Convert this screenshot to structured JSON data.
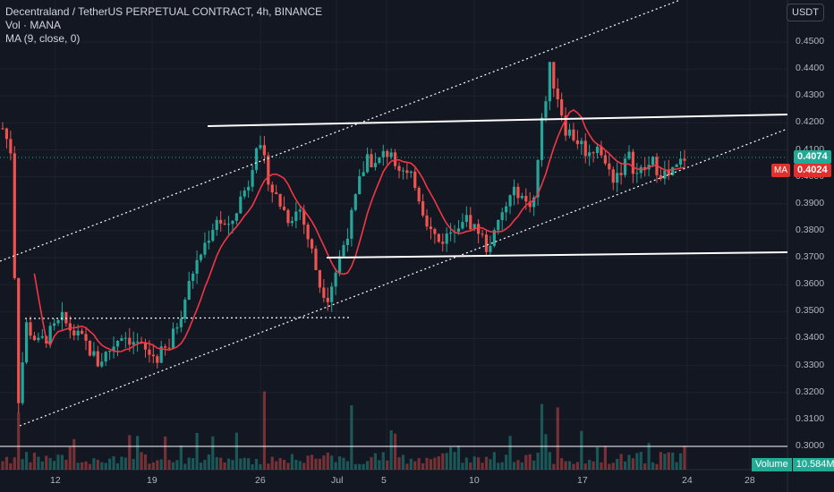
{
  "legend": {
    "title": "Decentraland / TetherUS PERPETUAL CONTRACT, 4h, BINANCE",
    "vol": "Vol · MANA",
    "ma": "MA (9, close, 0)"
  },
  "currency_button": "USDT",
  "tags": {
    "last_price": "0.4074",
    "ma_label": "MA",
    "ma_value": "0.4024",
    "volume_label": "Volume",
    "volume_value": "10.584M"
  },
  "colors": {
    "background": "#131722",
    "up": "#26a69a",
    "down": "#ef5350",
    "ma": "#f23645",
    "lines": "#ffffff"
  },
  "chart_data": {
    "type": "candlestick",
    "symbol": "MANAUSDT",
    "interval": "4h",
    "yaxis_ticks": [
      "0.4500",
      "0.4400",
      "0.4300",
      "0.4200",
      "0.4100",
      "0.4000",
      "0.3900",
      "0.3800",
      "0.3700",
      "0.3600",
      "0.3500",
      "0.3400",
      "0.3300",
      "0.3200",
      "0.3100",
      "0.3000"
    ],
    "ylim": [
      0.2955,
      0.4585
    ],
    "xaxis_ticks": [
      "12",
      "19",
      "26",
      "Jul",
      "5",
      "10",
      "17",
      "24",
      "28"
    ],
    "series_close_path": [
      [
        0,
        0.418
      ],
      [
        2,
        0.41
      ],
      [
        4,
        0.318
      ],
      [
        6,
        0.345
      ],
      [
        9,
        0.338
      ],
      [
        12,
        0.342
      ],
      [
        15,
        0.347
      ],
      [
        18,
        0.342
      ],
      [
        21,
        0.338
      ],
      [
        24,
        0.331
      ],
      [
        27,
        0.336
      ],
      [
        30,
        0.342
      ],
      [
        33,
        0.339
      ],
      [
        36,
        0.335
      ],
      [
        39,
        0.333
      ],
      [
        42,
        0.337
      ],
      [
        45,
        0.35
      ],
      [
        48,
        0.365
      ],
      [
        51,
        0.375
      ],
      [
        54,
        0.385
      ],
      [
        57,
        0.38
      ],
      [
        60,
        0.392
      ],
      [
        62,
        0.398
      ],
      [
        64,
        0.413
      ],
      [
        66,
        0.405
      ],
      [
        68,
        0.395
      ],
      [
        70,
        0.39
      ],
      [
        72,
        0.385
      ],
      [
        75,
        0.388
      ],
      [
        78,
        0.372
      ],
      [
        80,
        0.36
      ],
      [
        82,
        0.356
      ],
      [
        84,
        0.365
      ],
      [
        86,
        0.375
      ],
      [
        88,
        0.385
      ],
      [
        90,
        0.398
      ],
      [
        92,
        0.408
      ],
      [
        94,
        0.404
      ],
      [
        96,
        0.408
      ],
      [
        98,
        0.41
      ],
      [
        100,
        0.404
      ],
      [
        102,
        0.4
      ],
      [
        104,
        0.398
      ],
      [
        106,
        0.388
      ],
      [
        108,
        0.38
      ],
      [
        110,
        0.376
      ],
      [
        112,
        0.378
      ],
      [
        114,
        0.382
      ],
      [
        116,
        0.385
      ],
      [
        118,
        0.383
      ],
      [
        120,
        0.38
      ],
      [
        122,
        0.374
      ],
      [
        124,
        0.378
      ],
      [
        126,
        0.386
      ],
      [
        128,
        0.392
      ],
      [
        130,
        0.395
      ],
      [
        132,
        0.39
      ],
      [
        134,
        0.392
      ],
      [
        136,
        0.42
      ],
      [
        138,
        0.44
      ],
      [
        140,
        0.43
      ],
      [
        142,
        0.418
      ],
      [
        144,
        0.415
      ],
      [
        146,
        0.412
      ],
      [
        148,
        0.408
      ],
      [
        150,
        0.413
      ],
      [
        152,
        0.404
      ],
      [
        154,
        0.4
      ],
      [
        156,
        0.403
      ],
      [
        158,
        0.407
      ],
      [
        160,
        0.401
      ],
      [
        162,
        0.403
      ],
      [
        164,
        0.405
      ],
      [
        166,
        0.402
      ],
      [
        168,
        0.4
      ],
      [
        170,
        0.403
      ],
      [
        172,
        0.4074
      ]
    ],
    "ma_period": 9
  }
}
